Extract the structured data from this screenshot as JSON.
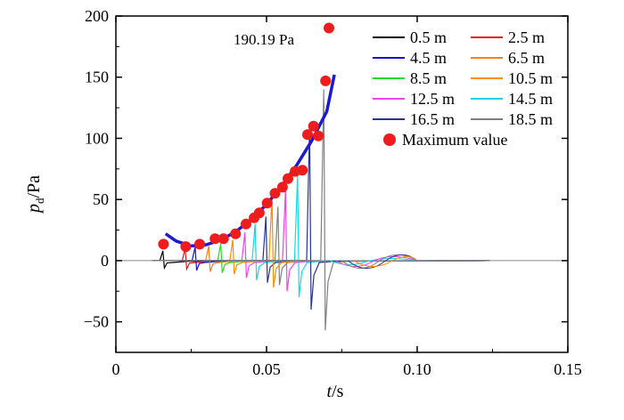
{
  "chart_data": {
    "type": "line",
    "xlabel_var": "t",
    "xlabel_unit": "/s",
    "ylabel_var": "p",
    "ylabel_sub": "d",
    "ylabel_unit": "/Pa",
    "xlim": [
      0,
      0.15
    ],
    "ylim": [
      -75,
      200
    ],
    "xticks": [
      0,
      0.05,
      0.1,
      0.15
    ],
    "xtick_labels": [
      "0",
      "0.05",
      "0.10",
      "0.15"
    ],
    "yticks": [
      -50,
      0,
      50,
      100,
      150,
      200
    ],
    "ytick_labels": [
      "−50",
      "0",
      "50",
      "100",
      "150",
      "200"
    ],
    "grid": false,
    "legend_position": "top-right",
    "annotation": "190.19 Pa",
    "annotation_point": [
      0.0707,
      190.19
    ],
    "series": [
      {
        "name": "0.5 m",
        "color": "#000000",
        "peak_t": 0.0158,
        "peak": 8,
        "trough": -6
      },
      {
        "name": "2.5 m",
        "color": "#e8141b",
        "peak_t": 0.0232,
        "peak": 10,
        "trough": -7
      },
      {
        "name": "4.5 m",
        "color": "#1414d2",
        "peak_t": 0.0265,
        "peak": 11,
        "trough": -8
      },
      {
        "name": "6.5 m",
        "color": "#ff7f0e",
        "peak_t": 0.031,
        "peak": 12,
        "trough": -9
      },
      {
        "name": "8.5 m",
        "color": "#22dd22",
        "peak_t": 0.035,
        "peak": 14,
        "trough": -10
      },
      {
        "name": "10.5 m",
        "color": "#ff8c00",
        "peak_t": 0.039,
        "peak": 17,
        "trough": -11
      },
      {
        "name": "12.5 m",
        "color": "#ee44ee",
        "peak_t": 0.043,
        "peak": 23,
        "trough": -14
      },
      {
        "name": "14.5 m",
        "color": "#14d8e6",
        "peak_t": 0.0464,
        "peak": 30,
        "trough": -16
      },
      {
        "name": "16.5 m",
        "color": "#283593",
        "peak_t": 0.05,
        "peak": 36,
        "trough": -18
      },
      {
        "name": "18.5 m",
        "color": "#808080",
        "peak_t": 0.054,
        "peak": 44,
        "trough": -20
      }
    ],
    "extra_spikes": [
      {
        "color": "#ff8c00",
        "peak_t": 0.052,
        "peak": 52,
        "trough": -22
      },
      {
        "color": "#ee44ee",
        "peak_t": 0.0565,
        "peak": 58,
        "trough": -25
      },
      {
        "color": "#14d8e6",
        "peak_t": 0.0605,
        "peak": 70,
        "trough": -30
      },
      {
        "color": "#283593",
        "peak_t": 0.0645,
        "peak": 110,
        "trough": -40
      },
      {
        "color": "#808080",
        "peak_t": 0.0692,
        "peak": 140,
        "trough": -57
      }
    ],
    "maximum_value": {
      "name": "Maximum value",
      "color": "#ee1c1c",
      "points": [
        [
          0.0158,
          13.5
        ],
        [
          0.0232,
          11.5
        ],
        [
          0.0278,
          13.5
        ],
        [
          0.0329,
          18
        ],
        [
          0.0357,
          18
        ],
        [
          0.0397,
          22
        ],
        [
          0.0432,
          30
        ],
        [
          0.0459,
          35
        ],
        [
          0.0476,
          39
        ],
        [
          0.0502,
          47
        ],
        [
          0.0528,
          55
        ],
        [
          0.0553,
          60
        ],
        [
          0.0571,
          67
        ],
        [
          0.0595,
          73
        ],
        [
          0.0619,
          74
        ],
        [
          0.0636,
          103
        ],
        [
          0.0656,
          110
        ],
        [
          0.0672,
          102
        ],
        [
          0.0696,
          147
        ],
        [
          0.0707,
          190.19
        ]
      ]
    },
    "fit_curve": {
      "color": "#1a1ad2",
      "points": [
        [
          0.0165,
          22
        ],
        [
          0.02,
          16
        ],
        [
          0.025,
          12
        ],
        [
          0.03,
          13
        ],
        [
          0.035,
          17
        ],
        [
          0.04,
          24
        ],
        [
          0.045,
          34
        ],
        [
          0.05,
          46
        ],
        [
          0.055,
          61
        ],
        [
          0.06,
          78
        ],
        [
          0.065,
          98
        ],
        [
          0.07,
          122
        ],
        [
          0.0725,
          152
        ]
      ]
    }
  }
}
